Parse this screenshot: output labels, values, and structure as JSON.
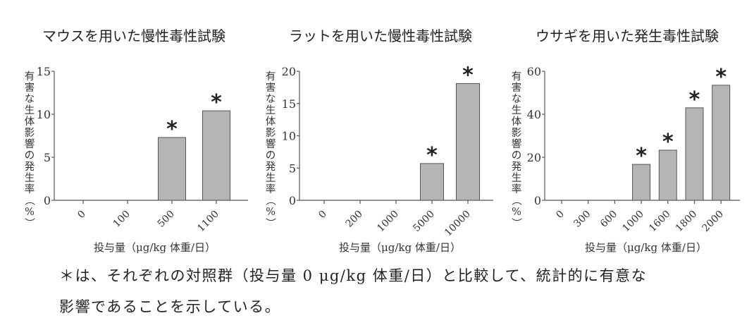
{
  "chart_data": [
    {
      "type": "bar",
      "title": "マウスを用いた慢性毒性試験",
      "xlabel": "投与量（μg/kg 体重/日）",
      "ylabel": "有害な生体影響の発生率（%）",
      "categories": [
        "0",
        "100",
        "500",
        "1100"
      ],
      "values": [
        0,
        0,
        7.3,
        10.4
      ],
      "significant": [
        false,
        false,
        true,
        true
      ],
      "ylim": [
        0,
        15
      ],
      "yticks": [
        0,
        5,
        10,
        15
      ]
    },
    {
      "type": "bar",
      "title": "ラットを用いた慢性毒性試験",
      "xlabel": "投与量（μg/kg 体重/日）",
      "ylabel": "有害な生体影響の発生率（%）",
      "categories": [
        "0",
        "200",
        "1000",
        "5000",
        "10000"
      ],
      "values": [
        0,
        0,
        0,
        5.7,
        18.1
      ],
      "significant": [
        false,
        false,
        false,
        true,
        true
      ],
      "ylim": [
        0,
        20
      ],
      "yticks": [
        0,
        5,
        10,
        15,
        20
      ]
    },
    {
      "type": "bar",
      "title": "ウサギを用いた発生毒性試験",
      "xlabel": "投与量（μg/kg 体重/日）",
      "ylabel": "有害な生体影響の発生率（%）",
      "categories": [
        "0",
        "300",
        "600",
        "1000",
        "1600",
        "1800",
        "2000"
      ],
      "values": [
        0,
        0,
        0,
        16.7,
        23.3,
        43,
        53.5
      ],
      "significant": [
        false,
        false,
        false,
        true,
        true,
        true,
        true
      ],
      "ylim": [
        0,
        60
      ],
      "yticks": [
        0,
        20,
        40,
        60
      ]
    }
  ],
  "significance_marker": "＊",
  "colors": {
    "bar": "#b5b5b5",
    "bar_edge": "#555555",
    "axis": "#555555"
  },
  "footnote": {
    "line1": "＊は、それぞれの対照群（投与量 0 μg/kg 体重/日）と比較して、統計的に有意な",
    "line2": "影響であることを示している。"
  }
}
